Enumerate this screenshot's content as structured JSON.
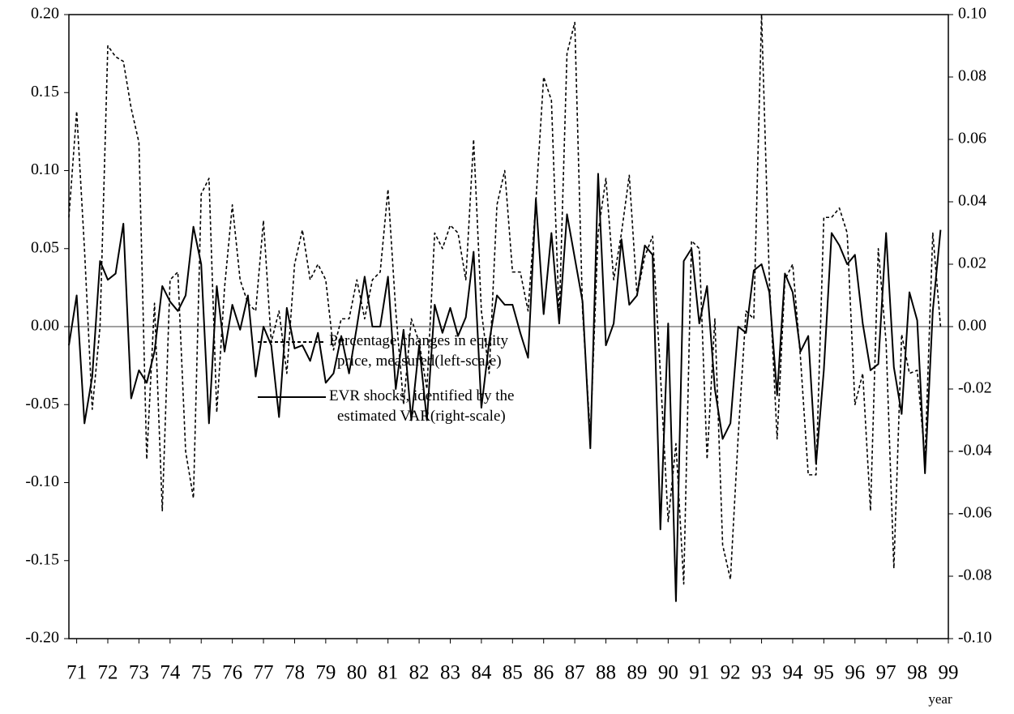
{
  "chart_data": {
    "type": "line",
    "x_label": "year",
    "x": [
      70.75,
      71,
      71.25,
      71.5,
      71.75,
      72,
      72.25,
      72.5,
      72.75,
      73,
      73.25,
      73.5,
      73.75,
      74,
      74.25,
      74.5,
      74.75,
      75,
      75.25,
      75.5,
      75.75,
      76,
      76.25,
      76.5,
      76.75,
      77,
      77.25,
      77.5,
      77.75,
      78,
      78.25,
      78.5,
      78.75,
      79,
      79.25,
      79.5,
      79.75,
      80,
      80.25,
      80.5,
      80.75,
      81,
      81.25,
      81.5,
      81.75,
      82,
      82.25,
      82.5,
      82.75,
      83,
      83.25,
      83.5,
      83.75,
      84,
      84.25,
      84.5,
      84.75,
      85,
      85.25,
      85.5,
      85.75,
      86,
      86.25,
      86.5,
      86.75,
      87,
      87.25,
      87.5,
      87.75,
      88,
      88.25,
      88.5,
      88.75,
      89,
      89.25,
      89.5,
      89.75,
      90,
      90.25,
      90.5,
      90.75,
      91,
      91.25,
      91.5,
      91.75,
      92,
      92.25,
      92.5,
      92.75,
      93,
      93.25,
      93.5,
      93.75,
      94,
      94.25,
      94.5,
      94.75,
      95,
      95.25,
      95.5,
      95.75,
      96,
      96.25,
      96.5,
      96.75,
      97,
      97.25,
      97.5,
      97.75,
      98,
      98.25,
      98.5,
      98.75
    ],
    "xlim": [
      70.75,
      99
    ],
    "xticks": [
      71,
      72,
      73,
      74,
      75,
      76,
      77,
      78,
      79,
      80,
      81,
      82,
      83,
      84,
      85,
      86,
      87,
      88,
      89,
      90,
      91,
      92,
      93,
      94,
      95,
      96,
      97,
      98,
      99
    ],
    "ylim": [
      -0.2,
      0.2
    ],
    "yticks": [
      {
        "value": -0.2,
        "label": "-0.20"
      },
      {
        "value": -0.15,
        "label": "-0.15"
      },
      {
        "value": -0.1,
        "label": "-0.10"
      },
      {
        "value": -0.05,
        "label": "-0.05"
      },
      {
        "value": 0,
        "label": "0.00"
      },
      {
        "value": 0.05,
        "label": "0.05"
      },
      {
        "value": 0.1,
        "label": "0.10"
      },
      {
        "value": 0.15,
        "label": "0.15"
      },
      {
        "value": 0.2,
        "label": "0.20"
      }
    ],
    "y2lim": [
      -0.1,
      0.1
    ],
    "y2ticks": [
      {
        "value": -0.1,
        "label": "-0.10"
      },
      {
        "value": -0.08,
        "label": "-0.08"
      },
      {
        "value": -0.06,
        "label": "-0.06"
      },
      {
        "value": -0.04,
        "label": "-0.04"
      },
      {
        "value": -0.02,
        "label": "-0.02"
      },
      {
        "value": 0,
        "label": "0.00"
      },
      {
        "value": 0.02,
        "label": "0.02"
      },
      {
        "value": 0.04,
        "label": "0.04"
      },
      {
        "value": 0.06,
        "label": "0.06"
      },
      {
        "value": 0.08,
        "label": "0.08"
      },
      {
        "value": 0.1,
        "label": "0.10"
      }
    ],
    "series": [
      {
        "name": "Percentage changes in equity price, measured(left-scale)",
        "color": "#000000",
        "style": "dashed",
        "values": [
          0.07,
          0.138,
          0.05,
          -0.053,
          0.0,
          0.18,
          0.173,
          0.17,
          0.14,
          0.118,
          -0.085,
          0.015,
          -0.118,
          0.03,
          0.035,
          -0.08,
          -0.11,
          0.085,
          0.095,
          -0.055,
          0.025,
          0.078,
          0.03,
          0.015,
          0.01,
          0.068,
          -0.01,
          0.01,
          -0.03,
          0.04,
          0.062,
          0.03,
          0.04,
          0.03,
          -0.015,
          0.005,
          0.005,
          0.03,
          0.005,
          0.03,
          0.035,
          0.088,
          0.01,
          -0.05,
          0.005,
          -0.01,
          -0.04,
          0.06,
          0.05,
          0.065,
          0.06,
          0.03,
          0.12,
          0.01,
          -0.03,
          0.078,
          0.1,
          0.035,
          0.035,
          0.01,
          0.08,
          0.16,
          0.145,
          0.005,
          0.175,
          0.195,
          0.01,
          -0.07,
          0.06,
          0.095,
          0.03,
          0.06,
          0.097,
          0.02,
          0.045,
          0.058,
          -0.03,
          -0.125,
          -0.075,
          -0.165,
          0.055,
          0.05,
          -0.085,
          0.005,
          -0.14,
          -0.162,
          -0.07,
          0.01,
          0.005,
          0.2,
          0.03,
          -0.072,
          0.03,
          0.04,
          -0.02,
          -0.095,
          -0.095,
          0.07,
          0.07,
          0.076,
          0.06,
          -0.05,
          -0.03,
          -0.118,
          0.05,
          -0.01,
          -0.155,
          -0.005,
          -0.03,
          -0.028,
          -0.085,
          0.06,
          0.0
        ]
      },
      {
        "name": "EVR shocks, identified by the estimated VAR(right-scale)",
        "color": "#000000",
        "style": "solid",
        "axis": "y2",
        "values": [
          -0.006,
          0.01,
          -0.031,
          -0.016,
          0.021,
          0.015,
          0.017,
          0.033,
          -0.023,
          -0.014,
          -0.018,
          -0.008,
          0.013,
          0.008,
          0.005,
          0.01,
          0.032,
          0.02,
          -0.031,
          0.013,
          -0.008,
          0.007,
          -0.001,
          0.01,
          -0.016,
          0.0,
          -0.006,
          -0.029,
          0.006,
          -0.007,
          -0.006,
          -0.011,
          -0.002,
          -0.018,
          -0.015,
          -0.003,
          -0.015,
          0.0,
          0.016,
          0.0,
          0.0,
          0.016,
          -0.02,
          -0.001,
          -0.03,
          -0.006,
          -0.03,
          0.007,
          -0.002,
          0.006,
          -0.003,
          0.003,
          0.024,
          -0.026,
          -0.005,
          0.01,
          0.007,
          0.007,
          -0.002,
          -0.01,
          0.041,
          0.004,
          0.03,
          0.001,
          0.036,
          0.022,
          0.008,
          -0.039,
          0.049,
          -0.006,
          0.001,
          0.028,
          0.007,
          0.01,
          0.026,
          0.023,
          -0.065,
          0.001,
          -0.088,
          0.021,
          0.025,
          0.001,
          0.013,
          -0.02,
          -0.036,
          -0.031,
          0.0,
          -0.002,
          0.018,
          0.02,
          0.011,
          -0.022,
          0.017,
          0.011,
          -0.008,
          -0.003,
          -0.044,
          -0.014,
          0.03,
          0.026,
          0.02,
          0.023,
          0.001,
          -0.014,
          -0.012,
          0.03,
          -0.013,
          -0.028,
          0.011,
          0.002,
          -0.047,
          0.005,
          0.031
        ]
      }
    ]
  }
}
